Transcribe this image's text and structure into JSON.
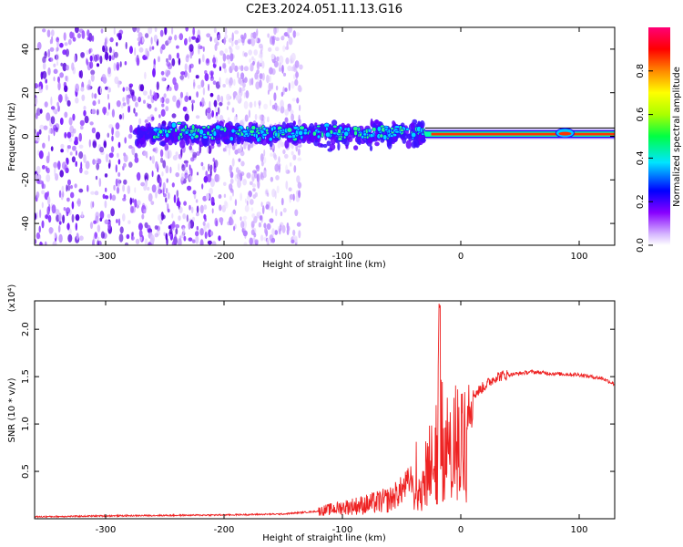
{
  "title": "C2E3.2024.051.11.13.G16",
  "chart_data": [
    {
      "type": "heatmap",
      "xlabel": "Height of straight line (km)",
      "ylabel": "Frequency (Hz)",
      "xlim": [
        -360,
        130
      ],
      "ylim": [
        -50,
        50
      ],
      "xticks": [
        -300,
        -200,
        -100,
        0,
        100
      ],
      "yticks": [
        -40,
        -20,
        0,
        20,
        40
      ],
      "colorbar": {
        "label": "Normalized spectral amplitude",
        "range": [
          0,
          1
        ],
        "ticks": [
          "0.0",
          "0.2",
          "0.4",
          "0.6",
          "0.8"
        ],
        "colors": [
          "#ffffff",
          "#d6b8ff",
          "#8800ff",
          "#0000ff",
          "#00e5ff",
          "#00ff44",
          "#aaff00",
          "#ffff00",
          "#ff8800",
          "#ff0000",
          "#ff0077"
        ]
      },
      "regions": [
        {
          "x": [
            -360,
            -200
          ],
          "freq_spread": [
            -50,
            50
          ],
          "amplitude": 0.15,
          "description_color": "#7a1cff"
        },
        {
          "x": [
            -200,
            -135
          ],
          "freq_spread": [
            -50,
            50
          ],
          "amplitude": 0.08,
          "description_color": "#c59bff"
        },
        {
          "x": [
            -270,
            -30
          ],
          "freq_spread": [
            -10,
            10
          ],
          "amplitude": 0.35,
          "description_color": "#2a1cff"
        },
        {
          "x": [
            -30,
            130
          ],
          "freq_spread": [
            -2,
            3
          ],
          "amplitude": 0.8,
          "description_color": "#ff3300"
        }
      ]
    },
    {
      "type": "line",
      "xlabel": "Height of straight line (km)",
      "ylabel": "SNR (10 * v/v)",
      "y_multiplier": "(x10⁴)",
      "xlim": [
        -360,
        130
      ],
      "ylim": [
        0,
        2.3
      ],
      "xticks": [
        -300,
        -200,
        -100,
        0,
        100
      ],
      "yticks": [
        "0.5",
        "1.0",
        "1.5",
        "2.0"
      ],
      "series": [
        {
          "color": "#ee2222",
          "x": [
            -360,
            -300,
            -200,
            -150,
            -120,
            -100,
            -80,
            -60,
            -50,
            -40,
            -30,
            -25,
            -20,
            -18,
            -15,
            -10,
            -5,
            0,
            10,
            20,
            30,
            40,
            60,
            80,
            100,
            120,
            130
          ],
          "y": [
            0.02,
            0.03,
            0.04,
            0.05,
            0.08,
            0.12,
            0.15,
            0.2,
            0.3,
            0.45,
            0.65,
            0.8,
            0.9,
            2.25,
            0.9,
            0.95,
            1.05,
            1.2,
            1.3,
            1.4,
            1.5,
            1.52,
            1.55,
            1.53,
            1.52,
            1.48,
            1.42
          ]
        }
      ]
    }
  ]
}
